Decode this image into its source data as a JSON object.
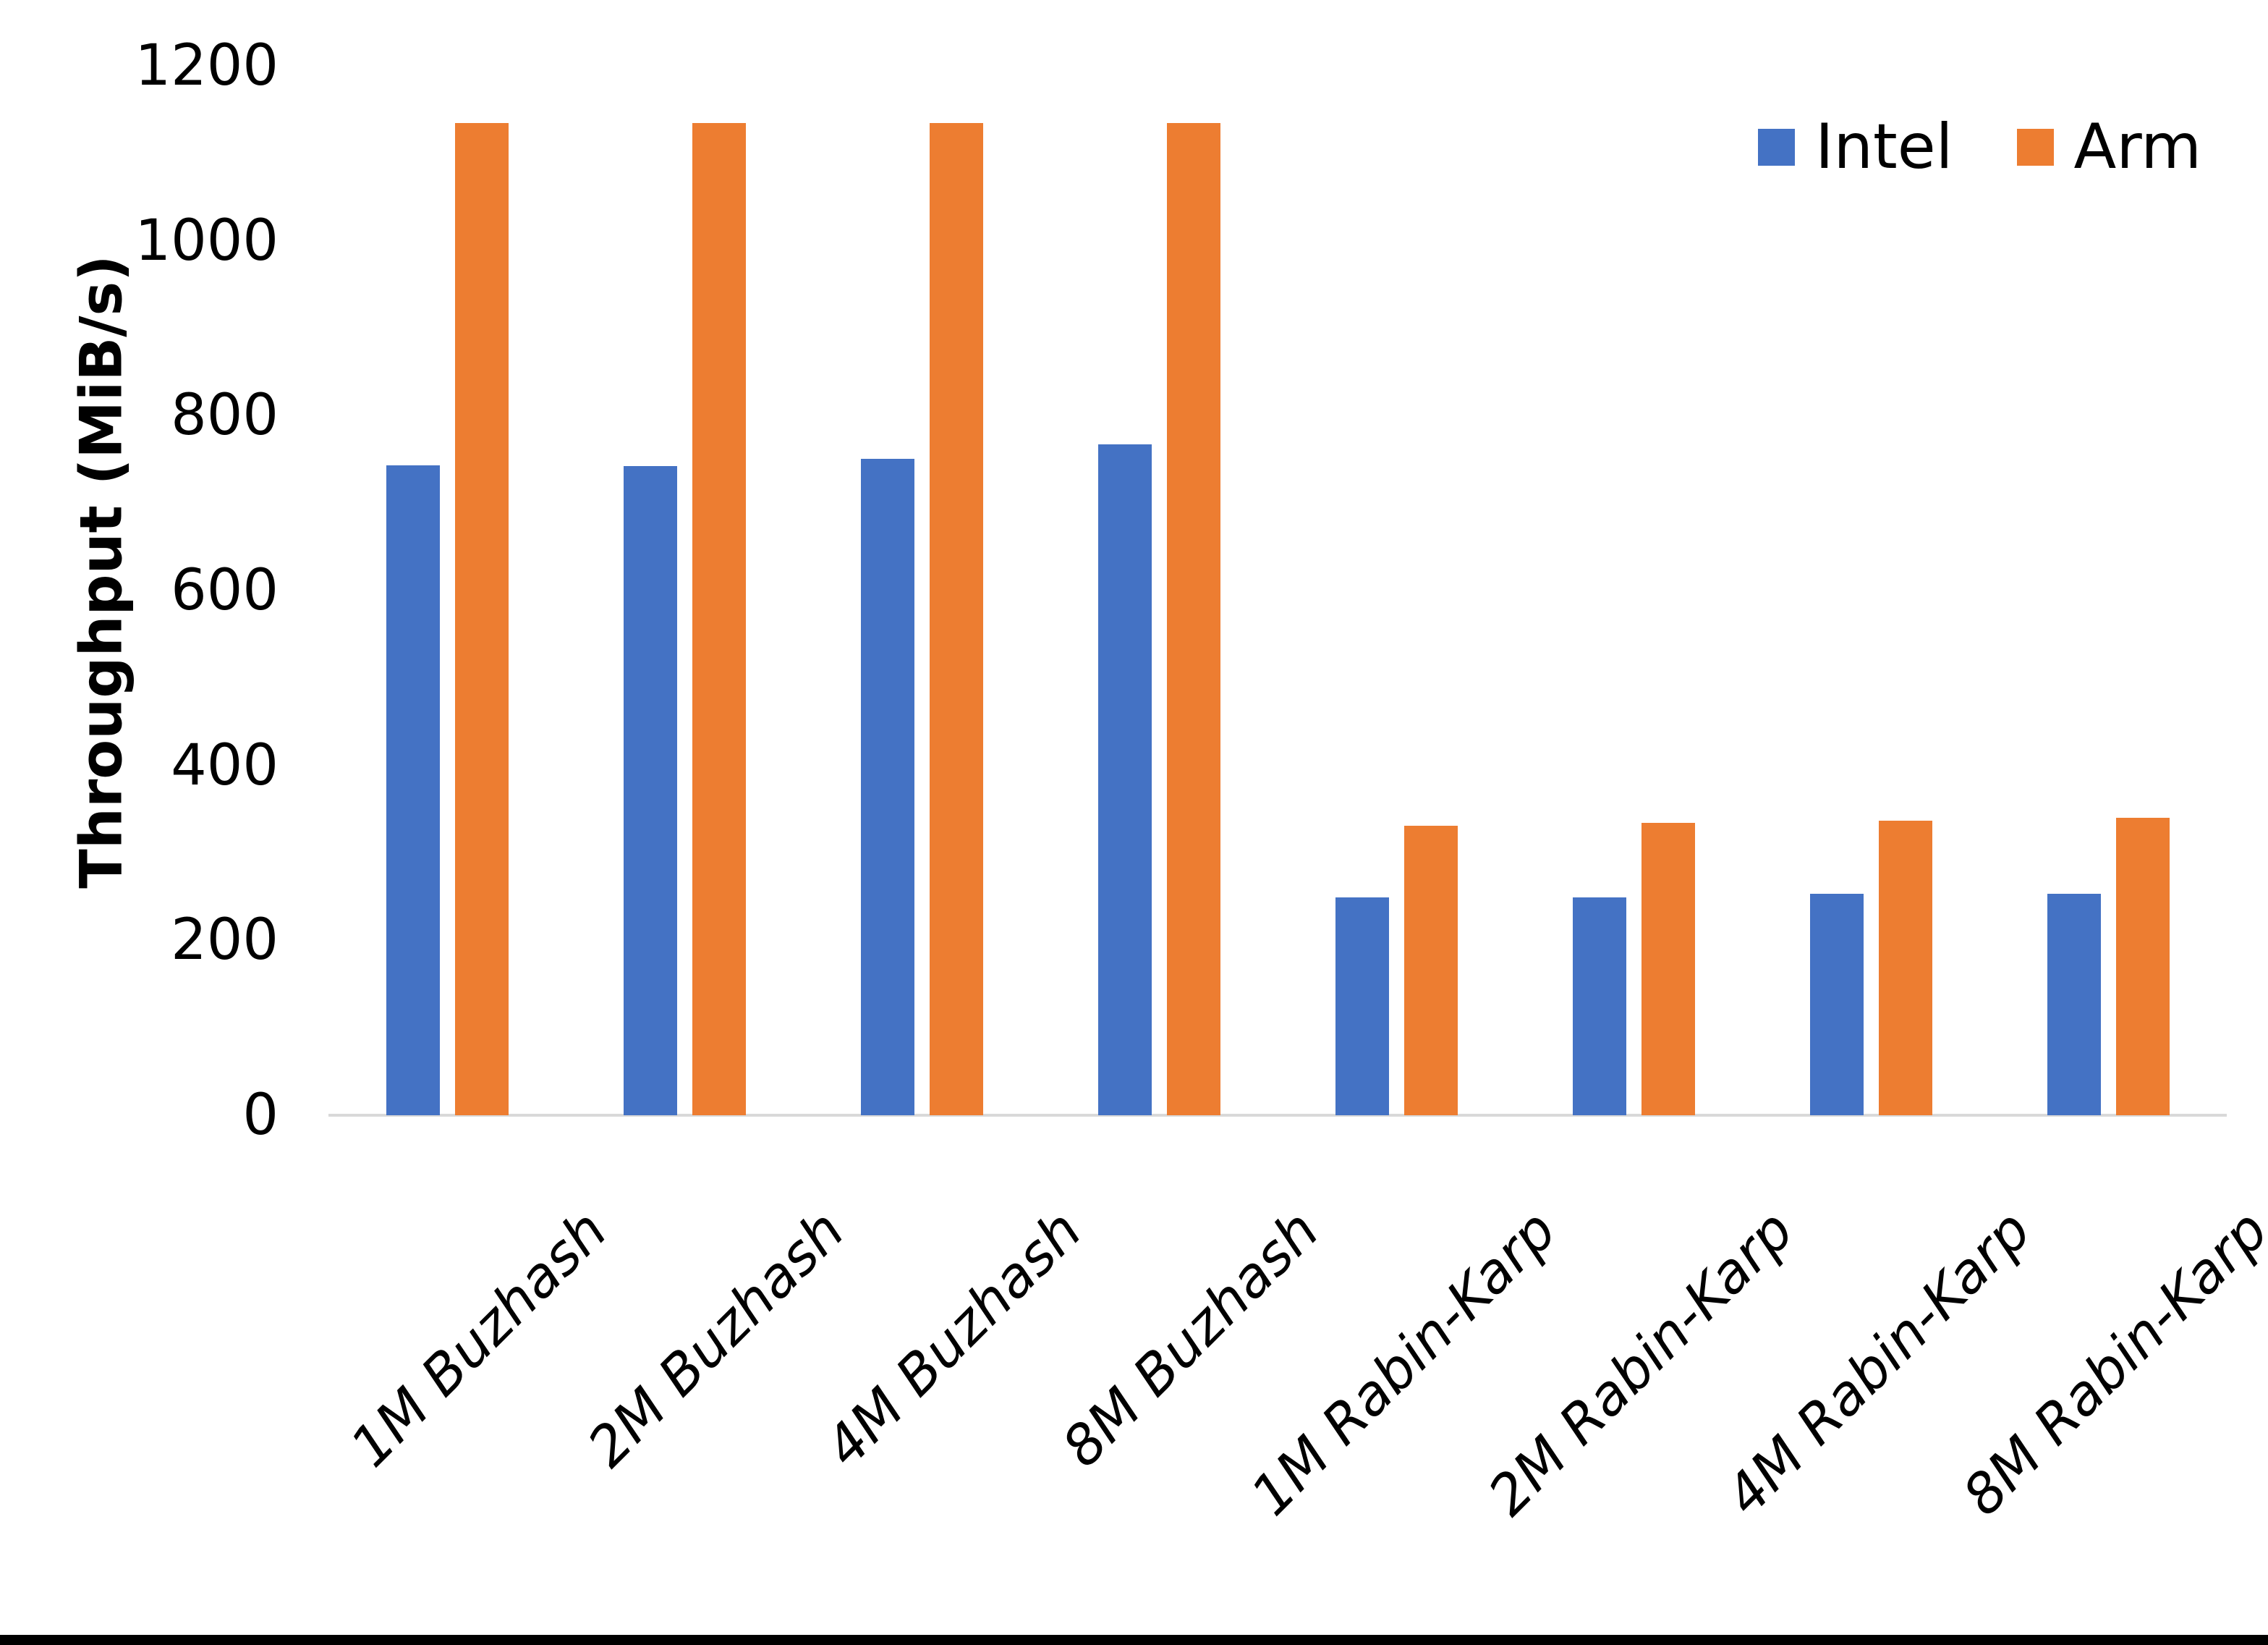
{
  "chart_data": {
    "type": "bar",
    "title": "",
    "xlabel": "",
    "ylabel": "Throughput (MiB/s)",
    "ylim": [
      0,
      1200
    ],
    "yticks": [
      0,
      200,
      400,
      600,
      800,
      1000,
      1200
    ],
    "grid": false,
    "legend_position": "top-right",
    "categories": [
      "1M Buzhash",
      "2M Buzhash",
      "4M Buzhash",
      "8M Buzhash",
      "1M Rabin-Karp",
      "2M Rabin-Karp",
      "4M Rabin-Karp",
      "8M Rabin-Karp"
    ],
    "series": [
      {
        "name": "Intel",
        "color": "#4472C4",
        "values": [
          743,
          742,
          751,
          767,
          249,
          249,
          253,
          253
        ]
      },
      {
        "name": "Arm",
        "color": "#ED7D31",
        "values": [
          1135,
          1135,
          1135,
          1135,
          331,
          334,
          337,
          340
        ]
      }
    ]
  },
  "colors": {
    "background": "#FFFFFF",
    "axis_line": "#D9D9D9",
    "text": "#000000",
    "bottom_border": "#000000"
  }
}
